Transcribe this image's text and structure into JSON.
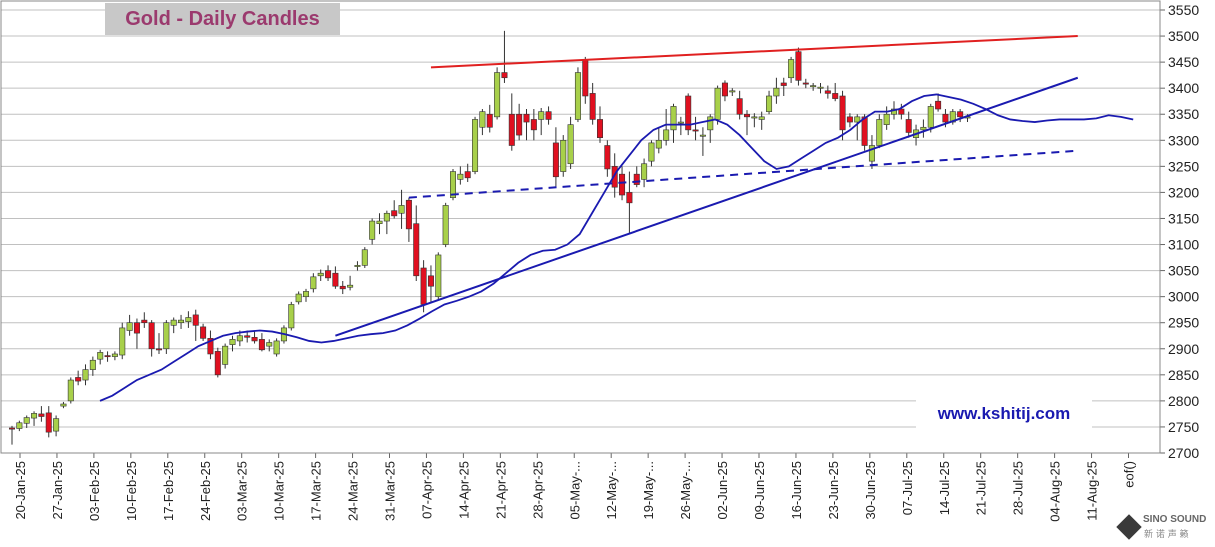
{
  "chart_data": {
    "type": "candlestick",
    "title": "Gold - Daily Candles",
    "y_axis": {
      "min": 2700,
      "max": 3550,
      "step": 50,
      "side": "right",
      "ticks": [
        "3550",
        "3500",
        "3450",
        "3400",
        "3350",
        "3300",
        "3250",
        "3200",
        "3150",
        "3100",
        "3050",
        "3000",
        "2950",
        "2900",
        "2850",
        "2800",
        "2750",
        "2700"
      ]
    },
    "x_axis": {
      "tick_labels": [
        "20-Jan-25",
        "27-Jan-25",
        "03-Feb-25",
        "10-Feb-25",
        "17-Feb-25",
        "24-Feb-25",
        "03-Mar-25",
        "10-Mar-25",
        "17-Mar-25",
        "24-Mar-25",
        "31-Mar-25",
        "07-Apr-25",
        "14-Apr-25",
        "21-Apr-25",
        "28-Apr-25",
        "05-May-...",
        "12-May-...",
        "19-May-...",
        "26-May-...",
        "02-Jun-25",
        "09-Jun-25",
        "16-Jun-25",
        "23-Jun-25",
        "30-Jun-25",
        "07-Jul-25",
        "14-Jul-25",
        "21-Jul-25",
        "28-Jul-25",
        "04-Aug-25",
        "11-Aug-25",
        "eof()"
      ]
    },
    "grid": "horizontal",
    "candles": [
      {
        "o": 2748,
        "h": 2752,
        "l": 2716,
        "c": 2746
      },
      {
        "o": 2747,
        "h": 2762,
        "l": 2742,
        "c": 2758
      },
      {
        "o": 2757,
        "h": 2772,
        "l": 2748,
        "c": 2768
      },
      {
        "o": 2767,
        "h": 2780,
        "l": 2752,
        "c": 2776
      },
      {
        "o": 2775,
        "h": 2790,
        "l": 2760,
        "c": 2770
      },
      {
        "o": 2777,
        "h": 2790,
        "l": 2730,
        "c": 2740
      },
      {
        "o": 2742,
        "h": 2772,
        "l": 2732,
        "c": 2766
      },
      {
        "o": 2790,
        "h": 2798,
        "l": 2786,
        "c": 2794
      },
      {
        "o": 2800,
        "h": 2845,
        "l": 2795,
        "c": 2840
      },
      {
        "o": 2845,
        "h": 2858,
        "l": 2830,
        "c": 2838
      },
      {
        "o": 2840,
        "h": 2870,
        "l": 2830,
        "c": 2860
      },
      {
        "o": 2860,
        "h": 2885,
        "l": 2848,
        "c": 2878
      },
      {
        "o": 2880,
        "h": 2898,
        "l": 2870,
        "c": 2893
      },
      {
        "o": 2887,
        "h": 2895,
        "l": 2875,
        "c": 2886
      },
      {
        "o": 2885,
        "h": 2895,
        "l": 2878,
        "c": 2890
      },
      {
        "o": 2888,
        "h": 2950,
        "l": 2880,
        "c": 2940
      },
      {
        "o": 2935,
        "h": 2965,
        "l": 2925,
        "c": 2950
      },
      {
        "o": 2950,
        "h": 2958,
        "l": 2900,
        "c": 2930
      },
      {
        "o": 2955,
        "h": 2970,
        "l": 2940,
        "c": 2950
      },
      {
        "o": 2950,
        "h": 2955,
        "l": 2885,
        "c": 2900
      },
      {
        "o": 2900,
        "h": 2930,
        "l": 2890,
        "c": 2898
      },
      {
        "o": 2900,
        "h": 2955,
        "l": 2890,
        "c": 2950
      },
      {
        "o": 2945,
        "h": 2960,
        "l": 2930,
        "c": 2955
      },
      {
        "o": 2950,
        "h": 2965,
        "l": 2938,
        "c": 2955
      },
      {
        "o": 2952,
        "h": 2972,
        "l": 2940,
        "c": 2960
      },
      {
        "o": 2965,
        "h": 2975,
        "l": 2915,
        "c": 2945
      },
      {
        "o": 2942,
        "h": 2948,
        "l": 2915,
        "c": 2920
      },
      {
        "o": 2920,
        "h": 2935,
        "l": 2880,
        "c": 2890
      },
      {
        "o": 2895,
        "h": 2902,
        "l": 2845,
        "c": 2850
      },
      {
        "o": 2870,
        "h": 2910,
        "l": 2862,
        "c": 2905
      },
      {
        "o": 2908,
        "h": 2925,
        "l": 2895,
        "c": 2918
      },
      {
        "o": 2915,
        "h": 2935,
        "l": 2905,
        "c": 2925
      },
      {
        "o": 2925,
        "h": 2935,
        "l": 2912,
        "c": 2922
      },
      {
        "o": 2922,
        "h": 2935,
        "l": 2910,
        "c": 2915
      },
      {
        "o": 2918,
        "h": 2930,
        "l": 2895,
        "c": 2898
      },
      {
        "o": 2905,
        "h": 2918,
        "l": 2895,
        "c": 2912
      },
      {
        "o": 2890,
        "h": 2920,
        "l": 2885,
        "c": 2915
      },
      {
        "o": 2915,
        "h": 2945,
        "l": 2910,
        "c": 2940
      },
      {
        "o": 2940,
        "h": 2990,
        "l": 2935,
        "c": 2985
      },
      {
        "o": 2990,
        "h": 3010,
        "l": 2985,
        "c": 3005
      },
      {
        "o": 3000,
        "h": 3015,
        "l": 2990,
        "c": 3010
      },
      {
        "o": 3015,
        "h": 3045,
        "l": 3008,
        "c": 3038
      },
      {
        "o": 3040,
        "h": 3052,
        "l": 3030,
        "c": 3045
      },
      {
        "o": 3050,
        "h": 3060,
        "l": 3030,
        "c": 3036
      },
      {
        "o": 3045,
        "h": 3058,
        "l": 3015,
        "c": 3020
      },
      {
        "o": 3020,
        "h": 3030,
        "l": 3005,
        "c": 3015
      },
      {
        "o": 3018,
        "h": 3040,
        "l": 3012,
        "c": 3022
      },
      {
        "o": 3060,
        "h": 3068,
        "l": 3050,
        "c": 3060
      },
      {
        "o": 3060,
        "h": 3095,
        "l": 3055,
        "c": 3090
      },
      {
        "o": 3110,
        "h": 3150,
        "l": 3100,
        "c": 3145
      },
      {
        "o": 3140,
        "h": 3160,
        "l": 3120,
        "c": 3145
      },
      {
        "o": 3145,
        "h": 3165,
        "l": 3120,
        "c": 3160
      },
      {
        "o": 3165,
        "h": 3185,
        "l": 3150,
        "c": 3155
      },
      {
        "o": 3160,
        "h": 3205,
        "l": 3130,
        "c": 3175
      },
      {
        "o": 3185,
        "h": 3190,
        "l": 3105,
        "c": 3130
      },
      {
        "o": 3140,
        "h": 3175,
        "l": 3030,
        "c": 3040
      },
      {
        "o": 3055,
        "h": 3070,
        "l": 2970,
        "c": 2985
      },
      {
        "o": 3040,
        "h": 3060,
        "l": 2990,
        "c": 3020
      },
      {
        "o": 3000,
        "h": 3085,
        "l": 2995,
        "c": 3080
      },
      {
        "o": 3100,
        "h": 3180,
        "l": 3095,
        "c": 3175
      },
      {
        "o": 3190,
        "h": 3245,
        "l": 3185,
        "c": 3240
      },
      {
        "o": 3225,
        "h": 3250,
        "l": 3215,
        "c": 3235
      },
      {
        "o": 3240,
        "h": 3255,
        "l": 3220,
        "c": 3228
      },
      {
        "o": 3240,
        "h": 3345,
        "l": 3235,
        "c": 3340
      },
      {
        "o": 3325,
        "h": 3360,
        "l": 3310,
        "c": 3355
      },
      {
        "o": 3350,
        "h": 3368,
        "l": 3315,
        "c": 3325
      },
      {
        "o": 3345,
        "h": 3440,
        "l": 3340,
        "c": 3430
      },
      {
        "o": 3430,
        "h": 3510,
        "l": 3410,
        "c": 3420
      },
      {
        "o": 3350,
        "h": 3390,
        "l": 3280,
        "c": 3290
      },
      {
        "o": 3350,
        "h": 3370,
        "l": 3300,
        "c": 3310
      },
      {
        "o": 3350,
        "h": 3360,
        "l": 3300,
        "c": 3335
      },
      {
        "o": 3340,
        "h": 3360,
        "l": 3300,
        "c": 3320
      },
      {
        "o": 3340,
        "h": 3362,
        "l": 3310,
        "c": 3355
      },
      {
        "o": 3355,
        "h": 3365,
        "l": 3330,
        "c": 3340
      },
      {
        "o": 3295,
        "h": 3325,
        "l": 3210,
        "c": 3230
      },
      {
        "o": 3240,
        "h": 3310,
        "l": 3230,
        "c": 3300
      },
      {
        "o": 3255,
        "h": 3345,
        "l": 3245,
        "c": 3330
      },
      {
        "o": 3340,
        "h": 3440,
        "l": 3335,
        "c": 3430
      },
      {
        "o": 3455,
        "h": 3460,
        "l": 3370,
        "c": 3385
      },
      {
        "o": 3390,
        "h": 3410,
        "l": 3330,
        "c": 3340
      },
      {
        "o": 3340,
        "h": 3365,
        "l": 3295,
        "c": 3305
      },
      {
        "o": 3290,
        "h": 3300,
        "l": 3230,
        "c": 3245
      },
      {
        "o": 3250,
        "h": 3275,
        "l": 3190,
        "c": 3210
      },
      {
        "o": 3235,
        "h": 3250,
        "l": 3185,
        "c": 3195
      },
      {
        "o": 3200,
        "h": 3240,
        "l": 3120,
        "c": 3180
      },
      {
        "o": 3235,
        "h": 3250,
        "l": 3210,
        "c": 3215
      },
      {
        "o": 3225,
        "h": 3265,
        "l": 3210,
        "c": 3255
      },
      {
        "o": 3260,
        "h": 3300,
        "l": 3250,
        "c": 3295
      },
      {
        "o": 3285,
        "h": 3325,
        "l": 3275,
        "c": 3300
      },
      {
        "o": 3300,
        "h": 3360,
        "l": 3290,
        "c": 3320
      },
      {
        "o": 3320,
        "h": 3370,
        "l": 3295,
        "c": 3365
      },
      {
        "o": 3335,
        "h": 3345,
        "l": 3310,
        "c": 3335
      },
      {
        "o": 3385,
        "h": 3390,
        "l": 3310,
        "c": 3320
      },
      {
        "o": 3320,
        "h": 3345,
        "l": 3300,
        "c": 3318
      },
      {
        "o": 3310,
        "h": 3325,
        "l": 3270,
        "c": 3310
      },
      {
        "o": 3320,
        "h": 3350,
        "l": 3295,
        "c": 3345
      },
      {
        "o": 3340,
        "h": 3405,
        "l": 3330,
        "c": 3400
      },
      {
        "o": 3410,
        "h": 3415,
        "l": 3375,
        "c": 3385
      },
      {
        "o": 3395,
        "h": 3400,
        "l": 3385,
        "c": 3395
      },
      {
        "o": 3380,
        "h": 3395,
        "l": 3340,
        "c": 3350
      },
      {
        "o": 3350,
        "h": 3358,
        "l": 3310,
        "c": 3345
      },
      {
        "o": 3345,
        "h": 3352,
        "l": 3325,
        "c": 3345
      },
      {
        "o": 3340,
        "h": 3355,
        "l": 3320,
        "c": 3345
      },
      {
        "o": 3355,
        "h": 3395,
        "l": 3350,
        "c": 3385
      },
      {
        "o": 3385,
        "h": 3420,
        "l": 3370,
        "c": 3400
      },
      {
        "o": 3410,
        "h": 3420,
        "l": 3385,
        "c": 3405
      },
      {
        "o": 3420,
        "h": 3460,
        "l": 3410,
        "c": 3455
      },
      {
        "o": 3470,
        "h": 3478,
        "l": 3405,
        "c": 3415
      },
      {
        "o": 3410,
        "h": 3418,
        "l": 3400,
        "c": 3408
      },
      {
        "o": 3405,
        "h": 3410,
        "l": 3395,
        "c": 3405
      },
      {
        "o": 3400,
        "h": 3410,
        "l": 3390,
        "c": 3402
      },
      {
        "o": 3395,
        "h": 3405,
        "l": 3380,
        "c": 3390
      },
      {
        "o": 3390,
        "h": 3410,
        "l": 3375,
        "c": 3380
      },
      {
        "o": 3385,
        "h": 3395,
        "l": 3300,
        "c": 3320
      },
      {
        "o": 3345,
        "h": 3352,
        "l": 3325,
        "c": 3335
      },
      {
        "o": 3335,
        "h": 3350,
        "l": 3300,
        "c": 3345
      },
      {
        "o": 3345,
        "h": 3350,
        "l": 3280,
        "c": 3290
      },
      {
        "o": 3260,
        "h": 3310,
        "l": 3245,
        "c": 3290
      },
      {
        "o": 3290,
        "h": 3350,
        "l": 3285,
        "c": 3340
      },
      {
        "o": 3330,
        "h": 3365,
        "l": 3320,
        "c": 3350
      },
      {
        "o": 3350,
        "h": 3375,
        "l": 3340,
        "c": 3360
      },
      {
        "o": 3360,
        "h": 3370,
        "l": 3340,
        "c": 3350
      },
      {
        "o": 3340,
        "h": 3355,
        "l": 3305,
        "c": 3315
      },
      {
        "o": 3305,
        "h": 3330,
        "l": 3290,
        "c": 3320
      },
      {
        "o": 3320,
        "h": 3340,
        "l": 3305,
        "c": 3325
      },
      {
        "o": 3325,
        "h": 3370,
        "l": 3315,
        "c": 3365
      },
      {
        "o": 3375,
        "h": 3390,
        "l": 3355,
        "c": 3360
      },
      {
        "o": 3350,
        "h": 3360,
        "l": 3325,
        "c": 3335
      },
      {
        "o": 3335,
        "h": 3360,
        "l": 3330,
        "c": 3355
      },
      {
        "o": 3355,
        "h": 3360,
        "l": 3335,
        "c": 3345
      },
      {
        "o": 3345,
        "h": 3350,
        "l": 3335,
        "c": 3345
      }
    ],
    "moving_average": [
      [
        1,
        2800
      ],
      [
        2,
        2810
      ],
      [
        3,
        2825
      ],
      [
        4,
        2840
      ],
      [
        5,
        2850
      ],
      [
        6,
        2860
      ],
      [
        7,
        2875
      ],
      [
        8,
        2890
      ],
      [
        9,
        2905
      ],
      [
        10,
        2915
      ],
      [
        11,
        2925
      ],
      [
        12,
        2930
      ],
      [
        13,
        2933
      ],
      [
        14,
        2935
      ],
      [
        15,
        2933
      ],
      [
        16,
        2928
      ],
      [
        17,
        2922
      ],
      [
        18,
        2915
      ],
      [
        19,
        2912
      ],
      [
        20,
        2915
      ],
      [
        21,
        2920
      ],
      [
        22,
        2925
      ],
      [
        23,
        2928
      ],
      [
        24,
        2930
      ],
      [
        25,
        2935
      ],
      [
        26,
        2945
      ],
      [
        27,
        2958
      ],
      [
        28,
        2972
      ],
      [
        29,
        2985
      ],
      [
        30,
        2992
      ],
      [
        31,
        3000
      ],
      [
        32,
        3010
      ],
      [
        33,
        3025
      ],
      [
        34,
        3045
      ],
      [
        35,
        3065
      ],
      [
        36,
        3080
      ],
      [
        37,
        3088
      ],
      [
        38,
        3090
      ],
      [
        39,
        3100
      ],
      [
        40,
        3120
      ],
      [
        41,
        3160
      ],
      [
        42,
        3200
      ],
      [
        43,
        3240
      ],
      [
        44,
        3270
      ],
      [
        45,
        3300
      ],
      [
        46,
        3320
      ],
      [
        47,
        3330
      ],
      [
        48,
        3330
      ],
      [
        49,
        3330
      ],
      [
        50,
        3335
      ],
      [
        51,
        3340
      ],
      [
        52,
        3330
      ],
      [
        53,
        3310
      ],
      [
        54,
        3285
      ],
      [
        55,
        3260
      ],
      [
        56,
        3245
      ],
      [
        57,
        3250
      ],
      [
        58,
        3265
      ],
      [
        59,
        3280
      ],
      [
        60,
        3295
      ],
      [
        61,
        3305
      ],
      [
        62,
        3320
      ],
      [
        63,
        3340
      ],
      [
        64,
        3355
      ],
      [
        65,
        3355
      ],
      [
        66,
        3360
      ],
      [
        67,
        3375
      ],
      [
        68,
        3385
      ],
      [
        69,
        3388
      ],
      [
        70,
        3383
      ],
      [
        71,
        3378
      ],
      [
        72,
        3370
      ],
      [
        73,
        3360
      ],
      [
        74,
        3348
      ],
      [
        75,
        3340
      ],
      [
        76,
        3337
      ],
      [
        77,
        3335
      ],
      [
        78,
        3338
      ],
      [
        79,
        3340
      ],
      [
        80,
        3340
      ],
      [
        81,
        3340
      ],
      [
        82,
        3342
      ],
      [
        83,
        3348
      ],
      [
        84,
        3345
      ],
      [
        85,
        3340
      ]
    ],
    "lines": [
      {
        "name": "resistance",
        "color": "#e02020",
        "style": "solid",
        "x1": 57,
        "y1": 3440,
        "x2": 145,
        "y2": 3500
      },
      {
        "name": "support",
        "color": "#1a1ab0",
        "style": "solid",
        "x1": 44,
        "y1": 2925,
        "x2": 145,
        "y2": 3420
      },
      {
        "name": "dashed-support",
        "color": "#1a1ab0",
        "style": "dashed",
        "x1": 54,
        "y1": 3190,
        "x2": 145,
        "y2": 3280
      }
    ],
    "watermark": "www.kshitij.com",
    "colors": {
      "up": "#a8d04a",
      "down": "#e01020",
      "ma": "#1a1ab0",
      "grid": "#c0c0c0"
    }
  },
  "logo": {
    "name": "SINO SOUND",
    "sub": "新 诺 声 籁"
  }
}
